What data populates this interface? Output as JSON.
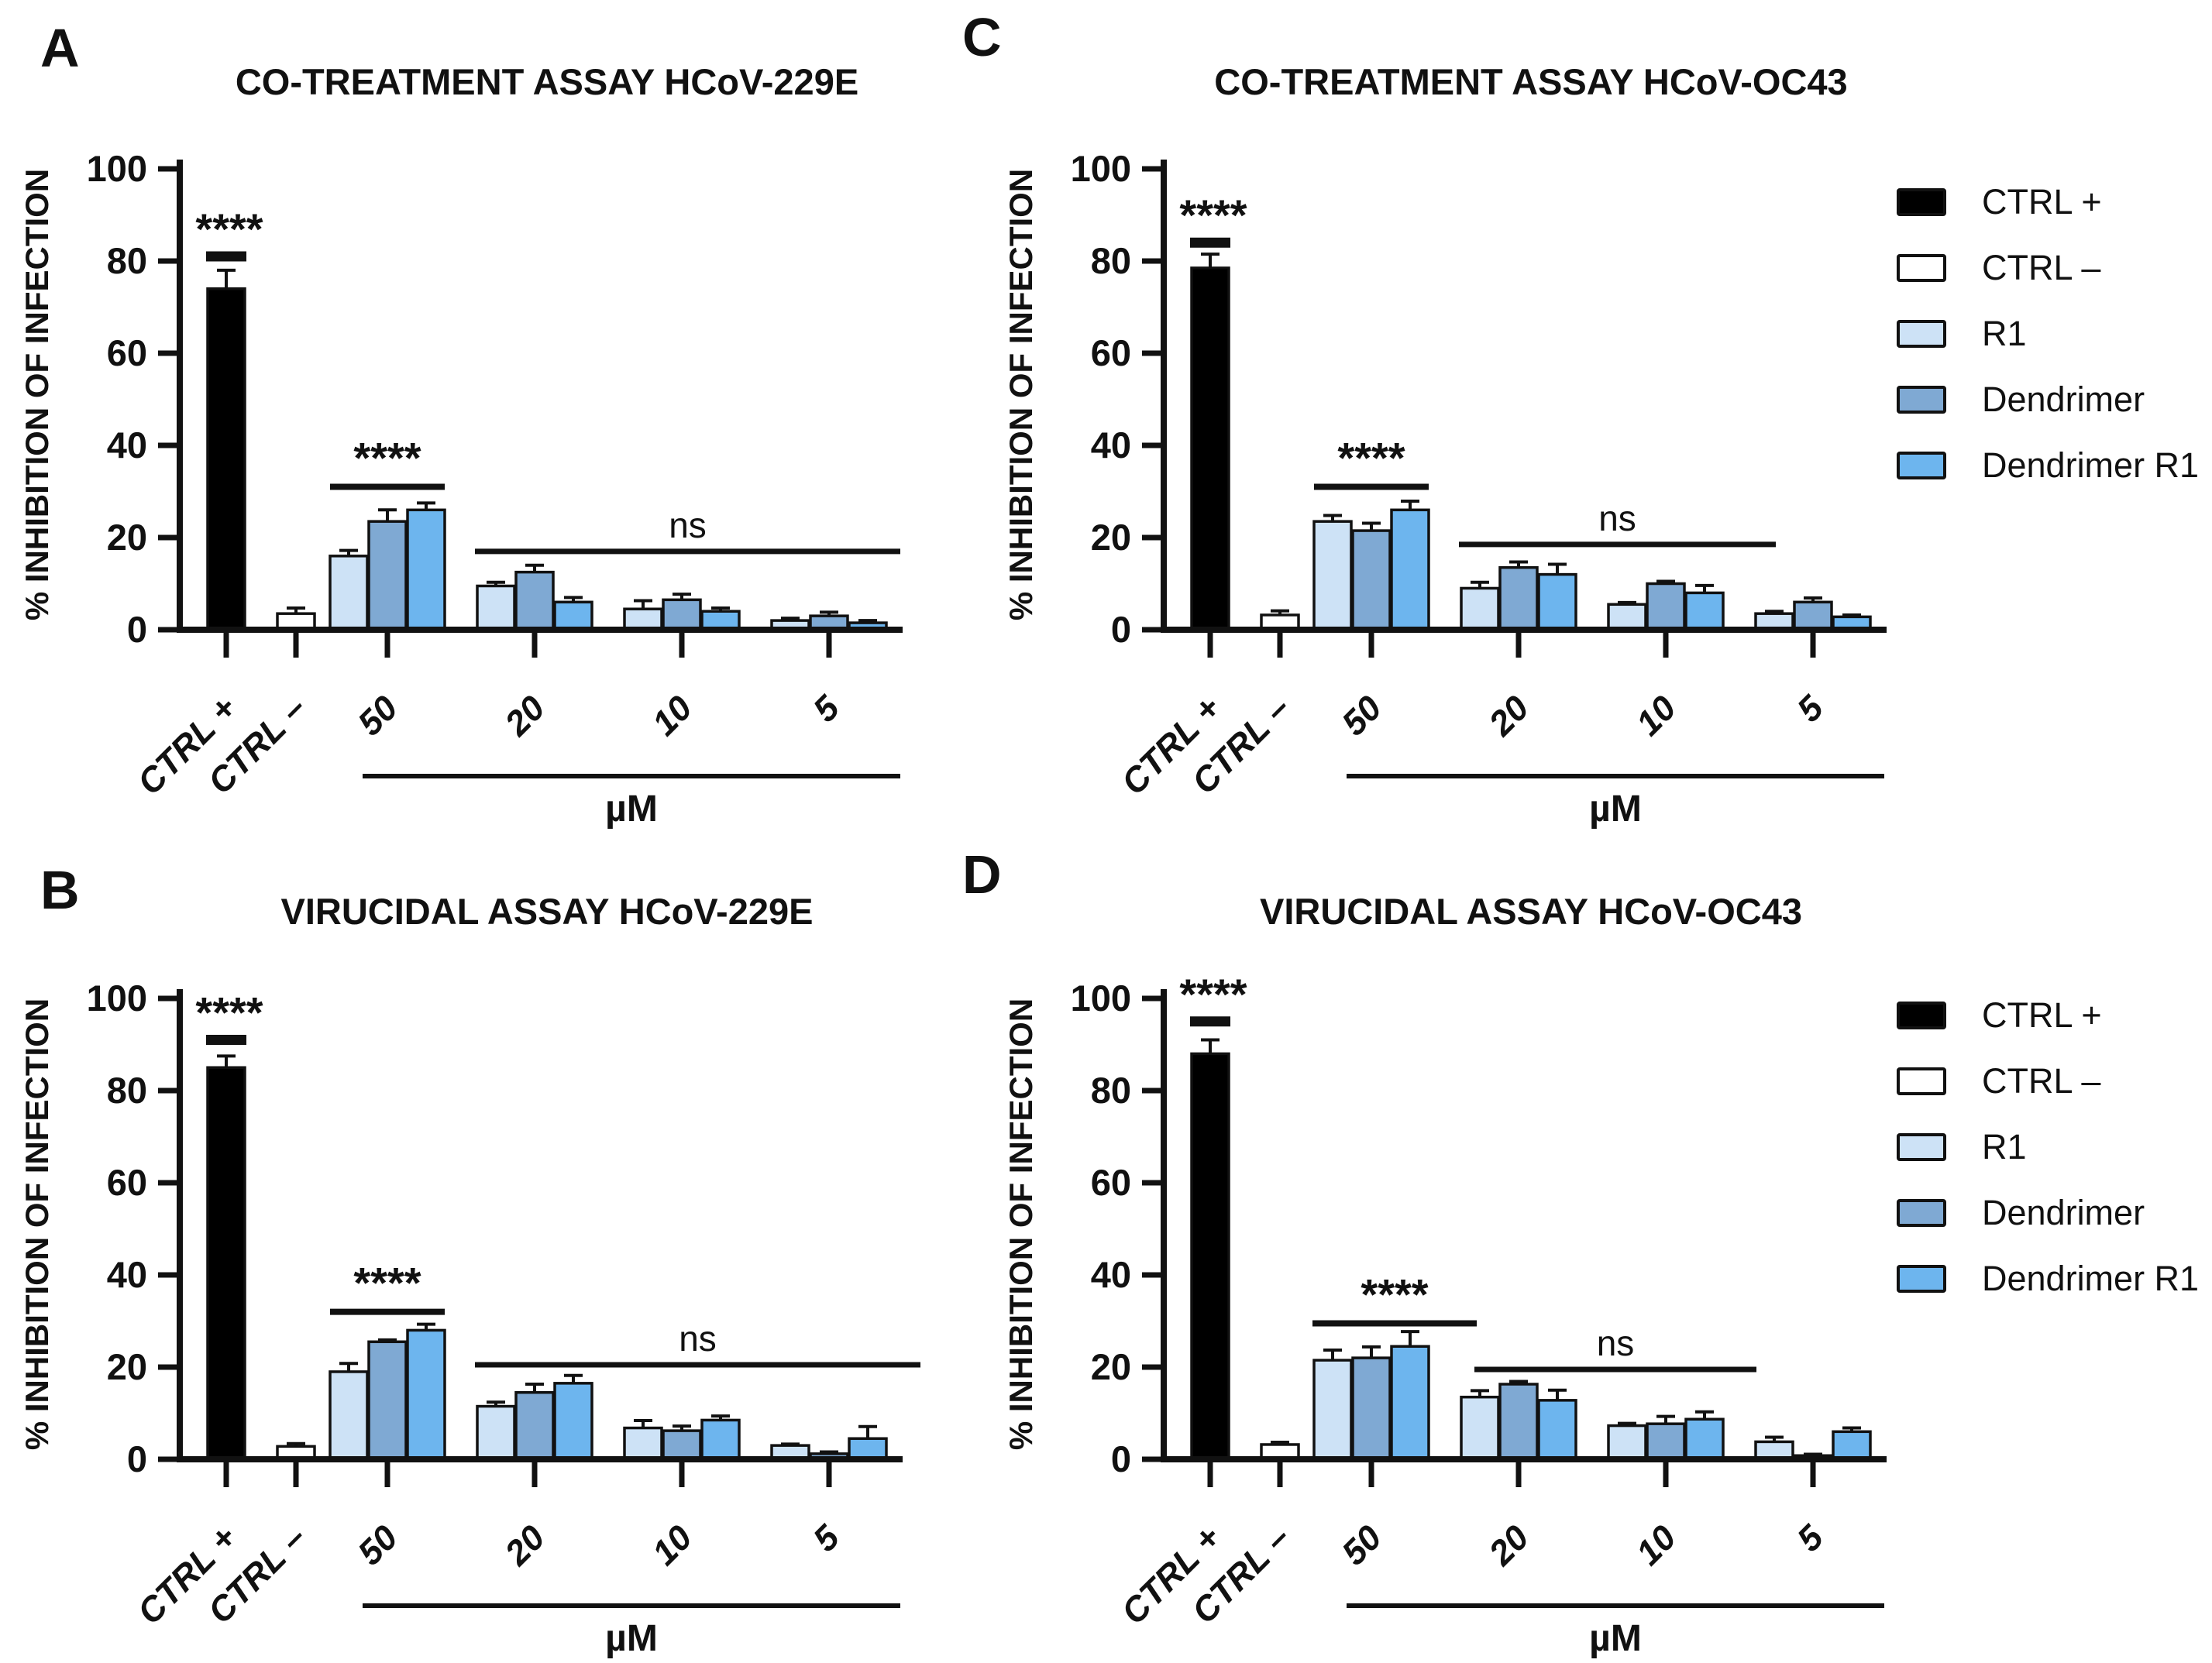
{
  "figure": {
    "background": "#ffffff"
  },
  "panel_letters": {
    "A": "A",
    "B": "B",
    "C": "C",
    "D": "D"
  },
  "legend": {
    "entries": [
      {
        "label": "CTRL +",
        "color": "#000000"
      },
      {
        "label": "CTRL –",
        "color": "#ffffff"
      },
      {
        "label": "R1",
        "color": "#cde2f6"
      },
      {
        "label": "Dendrimer",
        "color": "#7fa9d3"
      },
      {
        "label": "Dendrimer R1",
        "color": "#6db5ee"
      }
    ]
  },
  "axes": {
    "ylabel": "% INHIBITION OF INFECTION",
    "yticks": [
      0,
      20,
      40,
      60,
      80,
      100
    ],
    "x_ctrl_labels": [
      "CTRL +",
      "CTRL –"
    ],
    "x_concentrations": [
      "50",
      "20",
      "10",
      "5"
    ],
    "x_unit": "µM"
  },
  "series_order": [
    "R1",
    "Dendrimer",
    "Dendrimer R1"
  ],
  "series_colors": {
    "CTRL +": "#000000",
    "CTRL –": "#ffffff",
    "R1": "#cde2f6",
    "Dendrimer": "#7fa9d3",
    "Dendrimer R1": "#6db5ee"
  },
  "chart_data": [
    {
      "panel": "A",
      "type": "bar",
      "title": "CO-TREATMENT ASSAY HCoV-229E",
      "ylim": [
        0,
        100
      ],
      "ctrl_pos": {
        "value": 74,
        "err": 4
      },
      "ctrl_neg": {
        "value": 3.5,
        "err": 1.2
      },
      "groups": [
        {
          "conc": "50",
          "values": [
            16,
            23.5,
            26
          ],
          "errs": [
            1.2,
            2.5,
            1.5
          ]
        },
        {
          "conc": "20",
          "values": [
            9.5,
            12.5,
            6
          ],
          "errs": [
            0.8,
            1.5,
            1
          ]
        },
        {
          "conc": "10",
          "values": [
            4.5,
            6.5,
            4
          ],
          "errs": [
            1.8,
            1.2,
            0.7
          ]
        },
        {
          "conc": "5",
          "values": [
            2,
            3,
            1.5
          ],
          "errs": [
            0.5,
            0.8,
            0.5
          ]
        }
      ],
      "annotations": {
        "ctrl_sig": "****",
        "ctrl_sig_line": 81,
        "conc50_sig": "****",
        "conc50_sig_line": 31,
        "ns_label": "ns",
        "ns_line": 17
      }
    },
    {
      "panel": "C",
      "type": "bar",
      "title": "CO-TREATMENT ASSAY HCoV-OC43",
      "ylim": [
        0,
        100
      ],
      "ctrl_pos": {
        "value": 78.5,
        "err": 3
      },
      "ctrl_neg": {
        "value": 3.2,
        "err": 0.9
      },
      "groups": [
        {
          "conc": "50",
          "values": [
            23.5,
            21.5,
            26
          ],
          "errs": [
            1.3,
            1.6,
            1.9
          ]
        },
        {
          "conc": "20",
          "values": [
            9,
            13.5,
            12
          ],
          "errs": [
            1.3,
            1.2,
            2.2
          ]
        },
        {
          "conc": "10",
          "values": [
            5.5,
            10,
            8
          ],
          "errs": [
            0.4,
            0.5,
            1.6
          ]
        },
        {
          "conc": "5",
          "values": [
            3.5,
            6,
            2.8
          ],
          "errs": [
            0.5,
            0.9,
            0.4
          ]
        }
      ],
      "annotations": {
        "ctrl_sig": "****",
        "ctrl_sig_line": 84,
        "conc50_sig": "****",
        "conc50_sig_line": 31,
        "ns_label": "ns",
        "ns_line": 18.5
      }
    },
    {
      "panel": "B",
      "type": "bar",
      "title": "VIRUCIDAL ASSAY HCoV-229E",
      "ylim": [
        0,
        100
      ],
      "ctrl_pos": {
        "value": 85,
        "err": 2.5
      },
      "ctrl_neg": {
        "value": 2.8,
        "err": 0.6
      },
      "groups": [
        {
          "conc": "50",
          "values": [
            19,
            25.5,
            28
          ],
          "errs": [
            1.8,
            0.4,
            1.3
          ]
        },
        {
          "conc": "20",
          "values": [
            11.5,
            14.5,
            16.5
          ],
          "errs": [
            0.9,
            1.8,
            1.7
          ]
        },
        {
          "conc": "10",
          "values": [
            6.8,
            6.2,
            8.5
          ],
          "errs": [
            1.6,
            1,
            0.9
          ]
        },
        {
          "conc": "5",
          "values": [
            3,
            1.2,
            4.5
          ],
          "errs": [
            0.3,
            0.4,
            2.6
          ]
        }
      ],
      "annotations": {
        "ctrl_sig": "****",
        "ctrl_sig_line": 91,
        "conc50_sig": "****",
        "conc50_sig_line": 32,
        "ns_label": "ns",
        "ns_line": 20.5
      }
    },
    {
      "panel": "D",
      "type": "bar",
      "title": "VIRUCIDAL ASSAY HCoV-OC43",
      "ylim": [
        0,
        100
      ],
      "ctrl_pos": {
        "value": 88,
        "err": 3
      },
      "ctrl_neg": {
        "value": 3.2,
        "err": 0.5
      },
      "groups": [
        {
          "conc": "50",
          "values": [
            21.5,
            22,
            24.5
          ],
          "errs": [
            2.2,
            2.4,
            3.2
          ]
        },
        {
          "conc": "20",
          "values": [
            13.5,
            16.3,
            12.8
          ],
          "errs": [
            1.4,
            0.6,
            2.2
          ]
        },
        {
          "conc": "10",
          "values": [
            7.3,
            7.7,
            8.7
          ],
          "errs": [
            0.5,
            1.6,
            1.6
          ]
        },
        {
          "conc": "5",
          "values": [
            3.8,
            0.8,
            6
          ],
          "errs": [
            1,
            0.3,
            0.8
          ]
        }
      ],
      "annotations": {
        "ctrl_sig": "****",
        "ctrl_sig_line": 95,
        "conc50_sig": "****",
        "conc50_sig_line": 29.5,
        "ns_label": "ns",
        "ns_line": 19.5
      }
    }
  ]
}
